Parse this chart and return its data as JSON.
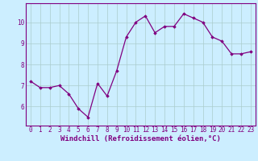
{
  "hours": [
    0,
    1,
    2,
    3,
    4,
    5,
    6,
    7,
    8,
    9,
    10,
    11,
    12,
    13,
    14,
    15,
    16,
    17,
    18,
    19,
    20,
    21,
    22,
    23
  ],
  "values": [
    7.2,
    6.9,
    6.9,
    7.0,
    6.6,
    5.9,
    5.5,
    7.1,
    6.5,
    7.7,
    9.3,
    10.0,
    10.3,
    9.5,
    9.8,
    9.8,
    10.4,
    10.2,
    10.0,
    9.3,
    9.1,
    8.5,
    8.5,
    8.6
  ],
  "line_color": "#800080",
  "marker": "D",
  "marker_size": 1.8,
  "bg_color": "#cceeff",
  "grid_color": "#aacccc",
  "xlabel": "Windchill (Refroidissement éolien,°C)",
  "xlabel_color": "#800080",
  "xlabel_fontsize": 6.5,
  "tick_color": "#800080",
  "tick_fontsize": 5.5,
  "yticks": [
    6,
    7,
    8,
    9,
    10
  ],
  "ylim": [
    5.1,
    10.9
  ],
  "xlim": [
    -0.5,
    23.5
  ]
}
